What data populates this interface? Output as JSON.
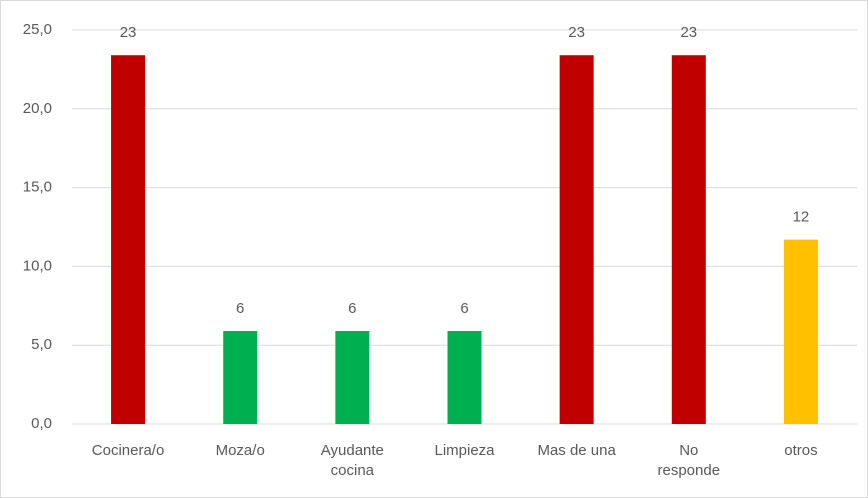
{
  "chart_data": {
    "type": "bar",
    "categories": [
      "Cocinera/o",
      "Moza/o",
      "Ayudante cocina",
      "Limpieza",
      "Mas de una",
      "No responde",
      "otros"
    ],
    "values": [
      23.4,
      5.9,
      5.9,
      5.9,
      23.4,
      23.4,
      11.7
    ],
    "value_labels": [
      "23",
      "6",
      "6",
      "6",
      "23",
      "23",
      "12"
    ],
    "colors": [
      "#c00000",
      "#00b050",
      "#00b050",
      "#00b050",
      "#c00000",
      "#c00000",
      "#ffc000"
    ],
    "ylim": [
      0,
      25
    ],
    "yticks": [
      {
        "value": 0,
        "label": "0,0"
      },
      {
        "value": 5,
        "label": "5,0"
      },
      {
        "value": 10,
        "label": "10,0"
      },
      {
        "value": 15,
        "label": "15,0"
      },
      {
        "value": 20,
        "label": "20,0"
      },
      {
        "value": 25,
        "label": "25,0"
      }
    ],
    "grid": true
  }
}
